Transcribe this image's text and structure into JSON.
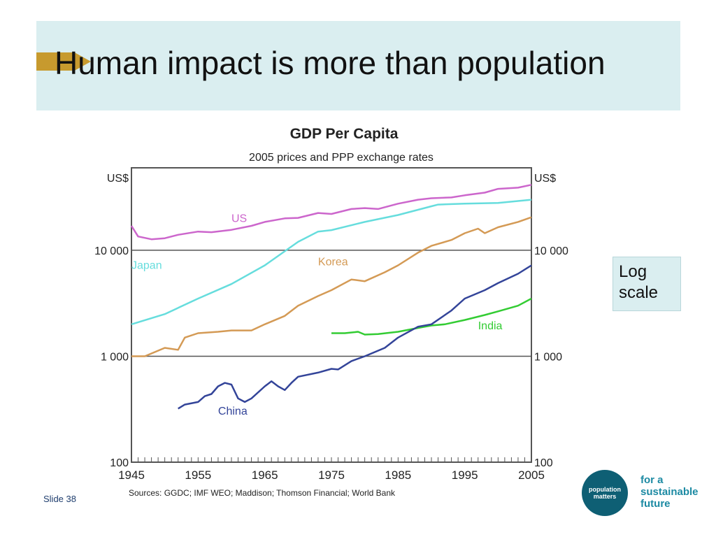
{
  "slide": {
    "title": "Human impact is more than population",
    "slide_number": "Slide 38",
    "note_lines": [
      "Log",
      "scale"
    ],
    "logo": {
      "circle_text": "population matters",
      "tagline_lines": [
        "for a",
        "sustainable",
        "future"
      ]
    },
    "accent_color": "#c79a2e",
    "title_bg": "#daeef0"
  },
  "chart_data": {
    "type": "line",
    "title": "GDP Per Capita",
    "subtitle": "2005 prices and PPP exchange rates",
    "left_unit": "US$",
    "right_unit": "US$",
    "y_scale": "log",
    "ylim": [
      100,
      60000
    ],
    "xlim": [
      1945,
      2005
    ],
    "y_ticks": [
      100,
      1000,
      10000
    ],
    "y_tick_labels": [
      "100",
      "1 000",
      "10 000"
    ],
    "x_ticks": [
      1945,
      1955,
      1965,
      1975,
      1985,
      1995,
      2005
    ],
    "x_tick_labels": [
      "1945",
      "1955",
      "1965",
      "1975",
      "1985",
      "1995",
      "2005"
    ],
    "source": "Sources: GGDC; IMF WEO; Maddison; Thomson Financial; World Bank",
    "series": [
      {
        "name": "US",
        "color": "#cc66cc",
        "x": [
          1945,
          1946,
          1948,
          1950,
          1952,
          1955,
          1957,
          1960,
          1963,
          1965,
          1968,
          1970,
          1973,
          1975,
          1978,
          1980,
          1982,
          1985,
          1988,
          1990,
          1993,
          1995,
          1998,
          2000,
          2003,
          2005
        ],
        "y": [
          17000,
          13500,
          12700,
          13000,
          14000,
          15000,
          14800,
          15600,
          17000,
          18500,
          20000,
          20200,
          22500,
          22000,
          24500,
          25000,
          24500,
          27500,
          30000,
          31000,
          31500,
          33000,
          35000,
          38000,
          39000,
          41500
        ]
      },
      {
        "name": "Japan",
        "color": "#66dddd",
        "x": [
          1945,
          1950,
          1955,
          1960,
          1965,
          1970,
          1973,
          1975,
          1980,
          1985,
          1990,
          1991,
          1995,
          2000,
          2005
        ],
        "y": [
          2000,
          2500,
          3500,
          4800,
          7200,
          12000,
          15000,
          15500,
          18500,
          21500,
          26000,
          27000,
          27500,
          28000,
          30000
        ]
      },
      {
        "name": "Korea",
        "color": "#d49a55",
        "x": [
          1945,
          1947,
          1950,
          1952,
          1953,
          1955,
          1958,
          1960,
          1963,
          1965,
          1968,
          1970,
          1973,
          1975,
          1978,
          1980,
          1983,
          1985,
          1988,
          1990,
          1993,
          1995,
          1997,
          1998,
          2000,
          2003,
          2005
        ],
        "y": [
          1000,
          1000,
          1200,
          1150,
          1500,
          1650,
          1700,
          1750,
          1750,
          2000,
          2400,
          3000,
          3700,
          4200,
          5300,
          5100,
          6200,
          7200,
          9500,
          11000,
          12500,
          14500,
          16000,
          14500,
          16500,
          18500,
          20500
        ]
      },
      {
        "name": "India",
        "color": "#33cc33",
        "x": [
          1975,
          1977,
          1979,
          1980,
          1982,
          1985,
          1988,
          1990,
          1992,
          1995,
          1998,
          2000,
          2003,
          2005
        ],
        "y": [
          1650,
          1650,
          1700,
          1600,
          1620,
          1700,
          1850,
          1950,
          2000,
          2200,
          2450,
          2650,
          3000,
          3500
        ]
      },
      {
        "name": "China",
        "color": "#334499",
        "x": [
          1952,
          1953,
          1955,
          1956,
          1957,
          1958,
          1959,
          1960,
          1961,
          1962,
          1963,
          1965,
          1966,
          1967,
          1968,
          1969,
          1970,
          1973,
          1975,
          1976,
          1978,
          1980,
          1983,
          1985,
          1988,
          1990,
          1993,
          1995,
          1998,
          2000,
          2003,
          2005
        ],
        "y": [
          320,
          350,
          370,
          420,
          440,
          520,
          560,
          540,
          400,
          370,
          400,
          520,
          580,
          520,
          480,
          560,
          640,
          700,
          760,
          750,
          900,
          1000,
          1200,
          1500,
          1900,
          2000,
          2700,
          3500,
          4200,
          4900,
          6000,
          7200
        ]
      }
    ],
    "series_labels": [
      {
        "name": "US",
        "x": 1960,
        "y": 18500
      },
      {
        "name": "Japan",
        "x": 1945,
        "y": 6700
      },
      {
        "name": "Korea",
        "x": 1973,
        "y": 7200
      },
      {
        "name": "India",
        "x": 1997,
        "y": 1800
      },
      {
        "name": "China",
        "x": 1958,
        "y": 280
      }
    ]
  }
}
